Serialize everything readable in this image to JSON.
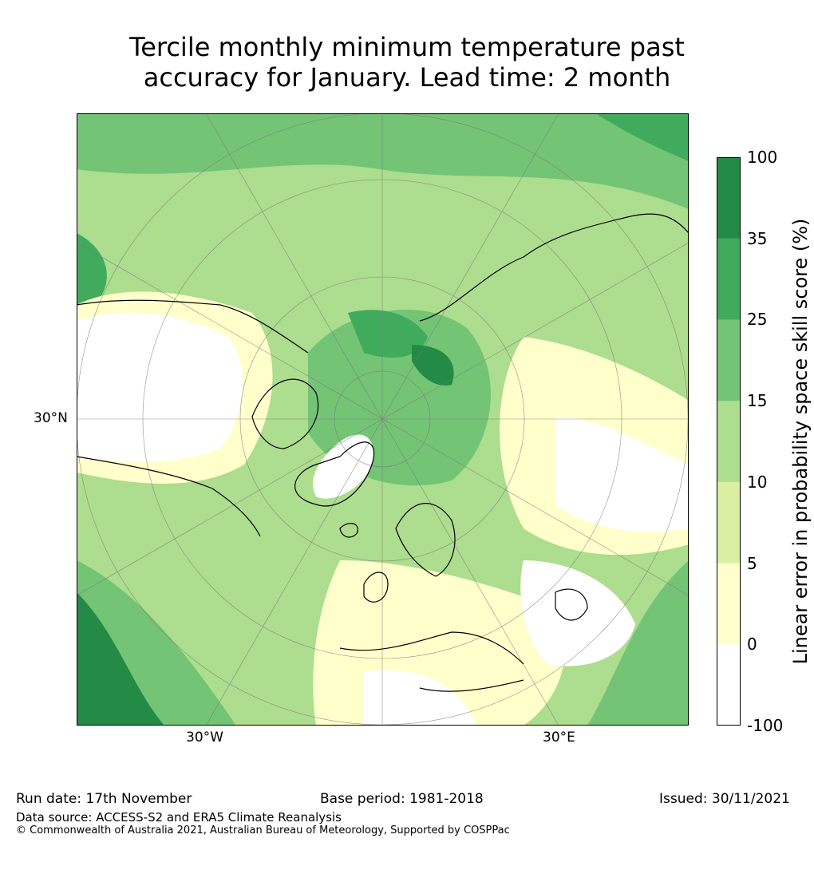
{
  "title": {
    "line1": "Tercile monthly minimum temperature past",
    "line2": "accuracy for January. Lead time: 2 month"
  },
  "map": {
    "lat_label": "30°N",
    "lon_labels": [
      "30°W",
      "30°E"
    ]
  },
  "colorbar": {
    "label": "Linear error in probability space skill score (%)",
    "ticks": [
      "100",
      "35",
      "25",
      "15",
      "10",
      "5",
      "0",
      "-100"
    ],
    "bins": [
      {
        "range": "35–100",
        "color": "#238b45"
      },
      {
        "range": "25–35",
        "color": "#41ab5d"
      },
      {
        "range": "15–25",
        "color": "#74c476"
      },
      {
        "range": "10–15",
        "color": "#addd8e"
      },
      {
        "range": "5–10",
        "color": "#d9f0a3"
      },
      {
        "range": "0–5",
        "color": "#ffffcc"
      },
      {
        "range": "-100–0",
        "color": "#ffffff"
      }
    ]
  },
  "footer": {
    "run_date": "Run date: 17th November",
    "base_period": "Base period: 1981-2018",
    "issued": "Issued: 30/11/2021",
    "data_source": "Data source: ACCESS-S2 and ERA5 Climate Reanalysis",
    "copyright": "© Commonwealth of Australia 2021, Australian Bureau of Meteorology, Supported by COSPPac"
  }
}
